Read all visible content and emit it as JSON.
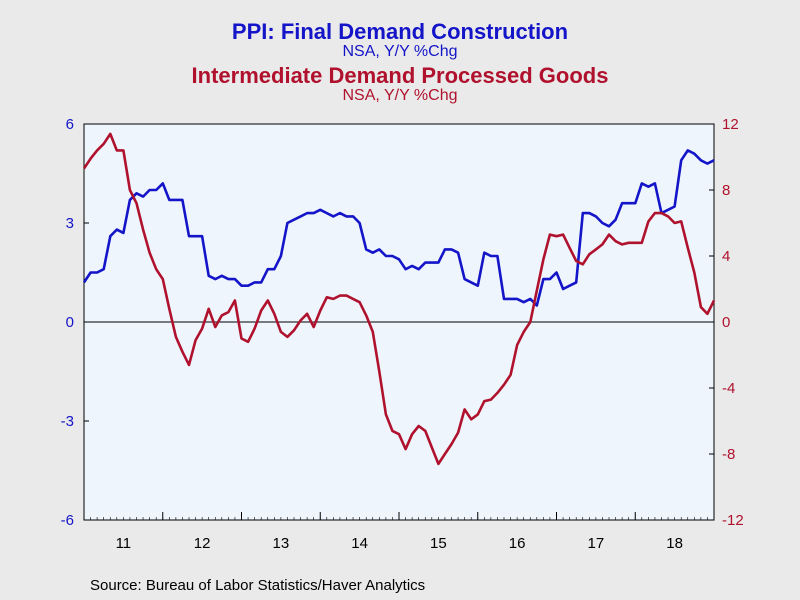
{
  "header": {
    "title1": "PPI: Final Demand Construction",
    "subtitle1": "NSA, Y/Y %Chg",
    "title2": "Intermediate Demand Processed Goods",
    "subtitle2": "NSA, Y/Y %Chg"
  },
  "footer": {
    "source": "Source:  Bureau of Labor Statistics/Haver Analytics"
  },
  "colors": {
    "series1": "#1414c8",
    "series2": "#b0122e",
    "plot_bg": "#eef5fd",
    "page_bg": "#eaeaea"
  },
  "chart_data": {
    "type": "line",
    "x_ticks": [
      "11",
      "12",
      "13",
      "14",
      "15",
      "16",
      "17",
      "18"
    ],
    "left_axis": {
      "ylim": [
        -6,
        6
      ],
      "ticks": [
        "6",
        "3",
        "0",
        "-3",
        "-6"
      ]
    },
    "right_axis": {
      "ylim": [
        -12,
        12
      ],
      "ticks": [
        "12",
        "8",
        "4",
        "0",
        "-4",
        "-8",
        "-12"
      ]
    },
    "grid": false,
    "zero_line": true,
    "series": [
      {
        "name": "PPI: Final Demand Construction",
        "axis": "left",
        "color": "#1414c8",
        "start": "2011-01",
        "values": [
          1.2,
          1.5,
          1.5,
          1.6,
          2.6,
          2.8,
          2.7,
          3.7,
          3.9,
          3.8,
          4.0,
          4.0,
          4.2,
          3.7,
          3.7,
          3.7,
          2.6,
          2.6,
          2.6,
          1.4,
          1.3,
          1.4,
          1.3,
          1.3,
          1.1,
          1.1,
          1.2,
          1.2,
          1.6,
          1.6,
          2.0,
          3.0,
          3.1,
          3.2,
          3.3,
          3.3,
          3.4,
          3.3,
          3.2,
          3.3,
          3.2,
          3.2,
          3.0,
          2.2,
          2.1,
          2.2,
          2.0,
          2.0,
          1.9,
          1.6,
          1.7,
          1.6,
          1.8,
          1.8,
          1.8,
          2.2,
          2.2,
          2.1,
          1.3,
          1.2,
          1.1,
          2.1,
          2.0,
          2.0,
          0.7,
          0.7,
          0.7,
          0.6,
          0.7,
          0.5,
          1.3,
          1.3,
          1.5,
          1.0,
          1.1,
          1.2,
          3.3,
          3.3,
          3.2,
          3.0,
          2.9,
          3.1,
          3.6,
          3.6,
          3.6,
          4.2,
          4.1,
          4.2,
          3.3,
          3.4,
          3.5,
          4.9,
          5.2,
          5.1,
          4.9,
          4.8,
          4.9
        ]
      },
      {
        "name": "Intermediate Demand Processed Goods",
        "axis": "right",
        "color": "#b0122e",
        "start": "2011-01",
        "values": [
          9.3,
          9.9,
          10.4,
          10.8,
          11.4,
          10.4,
          10.4,
          8.0,
          7.2,
          5.6,
          4.2,
          3.2,
          2.6,
          0.8,
          -0.9,
          -1.8,
          -2.6,
          -1.1,
          -0.4,
          0.8,
          -0.3,
          0.4,
          0.6,
          1.3,
          -1.0,
          -1.2,
          -0.4,
          0.7,
          1.3,
          0.5,
          -0.6,
          -0.9,
          -0.5,
          0.1,
          0.5,
          -0.3,
          0.7,
          1.5,
          1.4,
          1.6,
          1.6,
          1.4,
          1.2,
          0.4,
          -0.6,
          -3.0,
          -5.6,
          -6.6,
          -6.8,
          -7.7,
          -6.8,
          -6.3,
          -6.6,
          -7.6,
          -8.6,
          -8.0,
          -7.4,
          -6.7,
          -5.3,
          -5.9,
          -5.6,
          -4.8,
          -4.7,
          -4.3,
          -3.8,
          -3.2,
          -1.4,
          -0.6,
          0.0,
          1.9,
          3.8,
          5.3,
          5.2,
          5.3,
          4.5,
          3.7,
          3.5,
          4.1,
          4.4,
          4.7,
          5.3,
          4.9,
          4.7,
          4.8,
          4.8,
          4.8,
          6.1,
          6.6,
          6.6,
          6.4,
          6.0,
          6.1,
          4.5,
          3.0,
          0.9,
          0.5,
          1.3
        ]
      }
    ]
  }
}
